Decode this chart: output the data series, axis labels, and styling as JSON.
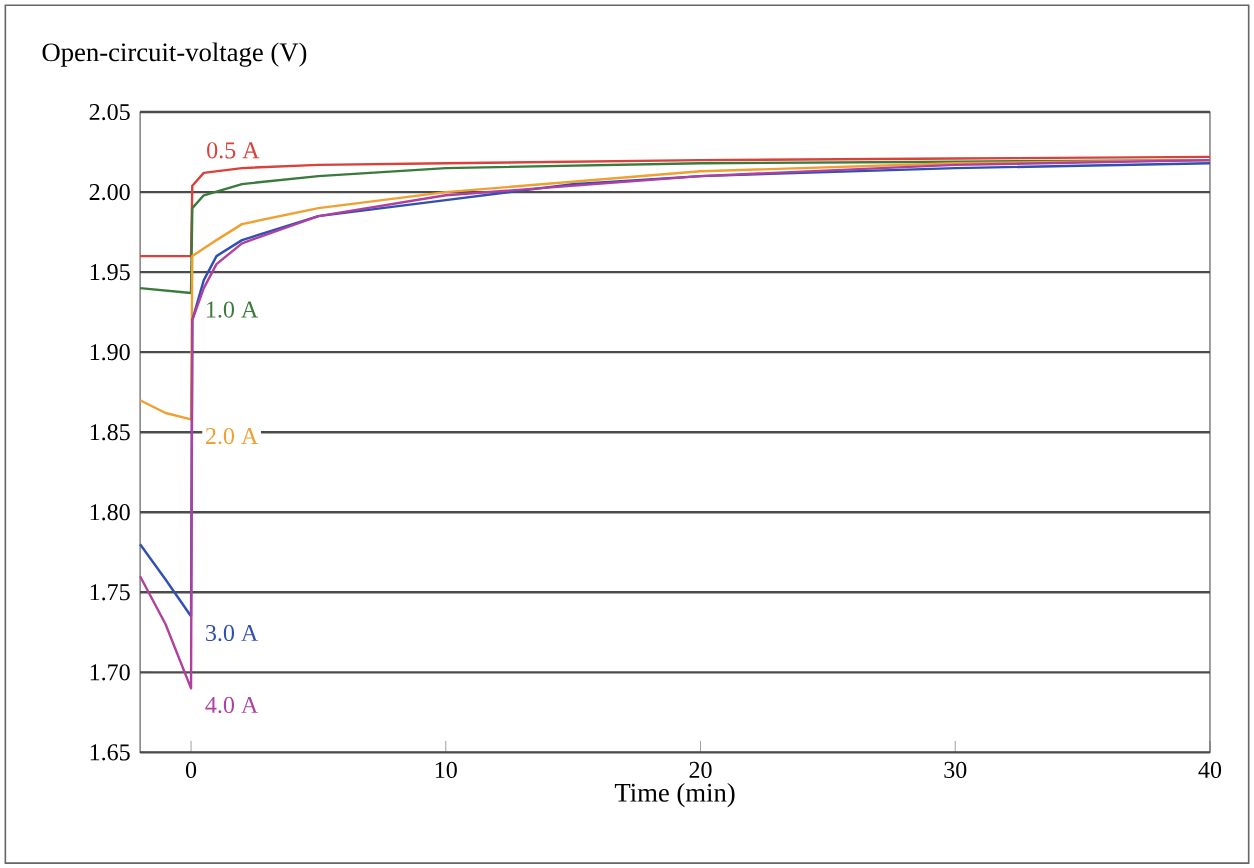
{
  "chart_data": {
    "type": "line",
    "ylabel": "Open-circuit-voltage (V)",
    "xlabel": "Time (min)",
    "xlim": [
      -2,
      40
    ],
    "ylim": [
      1.65,
      2.05
    ],
    "xticks": [
      0,
      10,
      20,
      30,
      40
    ],
    "yticks": [
      {
        "value": 1.65,
        "label": "1.65"
      },
      {
        "value": 1.7,
        "label": "1.70"
      },
      {
        "value": 1.75,
        "label": "1.75"
      },
      {
        "value": 1.8,
        "label": "1.80"
      },
      {
        "value": 1.85,
        "label": "1.85"
      },
      {
        "value": 1.9,
        "label": "1.90"
      },
      {
        "value": 1.95,
        "label": "1.95"
      },
      {
        "value": 2.0,
        "label": "2.00"
      },
      {
        "value": 2.05,
        "label": "2.05"
      }
    ],
    "grid": "y",
    "line_style": "solid",
    "series": [
      {
        "name": "0.5 A",
        "color": "#d9413a",
        "x": [
          -2,
          0,
          0.05,
          0.5,
          2,
          5,
          10,
          20,
          30,
          40
        ],
        "values": [
          1.96,
          1.96,
          2.004,
          2.012,
          2.015,
          2.017,
          2.018,
          2.02,
          2.021,
          2.022
        ]
      },
      {
        "name": "1.0 A",
        "color": "#3a7a3a",
        "x": [
          -2,
          0,
          0.05,
          0.5,
          2,
          5,
          10,
          20,
          30,
          40
        ],
        "values": [
          1.94,
          1.937,
          1.99,
          1.998,
          2.005,
          2.01,
          2.015,
          2.018,
          2.019,
          2.02
        ]
      },
      {
        "name": "2.0 A",
        "color": "#f0a030",
        "x": [
          -2,
          -1,
          0,
          0.05,
          1,
          2,
          5,
          10,
          20,
          30,
          40
        ],
        "values": [
          1.87,
          1.862,
          1.858,
          1.96,
          1.97,
          1.98,
          1.99,
          2.0,
          2.013,
          2.018,
          2.02
        ]
      },
      {
        "name": "3.0 A",
        "color": "#3050b0",
        "x": [
          -2,
          -1,
          0,
          0.05,
          0.5,
          1,
          2,
          5,
          10,
          15,
          20,
          30,
          40
        ],
        "values": [
          1.78,
          1.758,
          1.735,
          1.92,
          1.945,
          1.96,
          1.97,
          1.985,
          1.995,
          2.005,
          2.01,
          2.015,
          2.018
        ]
      },
      {
        "name": "4.0 A",
        "color": "#b040a0",
        "x": [
          -2,
          -1,
          0,
          0.05,
          0.5,
          1,
          2,
          5,
          10,
          20,
          30,
          40
        ],
        "values": [
          1.76,
          1.73,
          1.69,
          1.92,
          1.94,
          1.955,
          1.968,
          1.985,
          1.998,
          2.01,
          2.017,
          2.02
        ]
      }
    ]
  }
}
